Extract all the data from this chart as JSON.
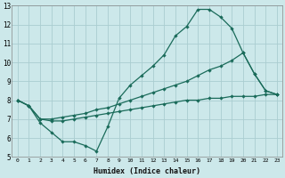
{
  "xlabel": "Humidex (Indice chaleur)",
  "bg_color": "#cce8ea",
  "grid_color": "#aacdd0",
  "line_color": "#1a6b5a",
  "xlim": [
    -0.5,
    23.5
  ],
  "ylim": [
    5,
    13
  ],
  "xticks": [
    0,
    1,
    2,
    3,
    4,
    5,
    6,
    7,
    8,
    9,
    10,
    11,
    12,
    13,
    14,
    15,
    16,
    17,
    18,
    19,
    20,
    21,
    22,
    23
  ],
  "yticks": [
    5,
    6,
    7,
    8,
    9,
    10,
    11,
    12,
    13
  ],
  "line1_x": [
    0,
    1,
    2,
    3,
    4,
    5,
    6,
    7,
    8,
    9,
    10,
    11,
    12,
    13,
    14,
    15,
    16,
    17,
    18,
    19,
    20,
    21,
    22,
    23
  ],
  "line1_y": [
    8.0,
    7.7,
    6.8,
    6.3,
    5.8,
    5.8,
    5.6,
    5.3,
    6.6,
    8.1,
    8.8,
    9.3,
    9.8,
    10.4,
    11.4,
    11.9,
    12.8,
    12.8,
    12.4,
    11.8,
    10.5,
    9.4,
    8.5,
    8.3
  ],
  "line2_x": [
    0,
    1,
    2,
    3,
    4,
    5,
    6,
    7,
    8,
    9,
    10,
    11,
    12,
    13,
    14,
    15,
    16,
    17,
    18,
    19,
    20,
    21,
    22,
    23
  ],
  "line2_y": [
    8.0,
    7.7,
    7.0,
    7.0,
    7.1,
    7.2,
    7.3,
    7.5,
    7.6,
    7.8,
    8.0,
    8.2,
    8.4,
    8.6,
    8.8,
    9.0,
    9.3,
    9.6,
    9.8,
    10.1,
    10.5,
    9.4,
    8.5,
    8.3
  ],
  "line3_x": [
    0,
    1,
    2,
    3,
    4,
    5,
    6,
    7,
    8,
    9,
    10,
    11,
    12,
    13,
    14,
    15,
    16,
    17,
    18,
    19,
    20,
    21,
    22,
    23
  ],
  "line3_y": [
    8.0,
    7.7,
    7.0,
    6.9,
    6.9,
    7.0,
    7.1,
    7.2,
    7.3,
    7.4,
    7.5,
    7.6,
    7.7,
    7.8,
    7.9,
    8.0,
    8.0,
    8.1,
    8.1,
    8.2,
    8.2,
    8.2,
    8.3,
    8.3
  ]
}
